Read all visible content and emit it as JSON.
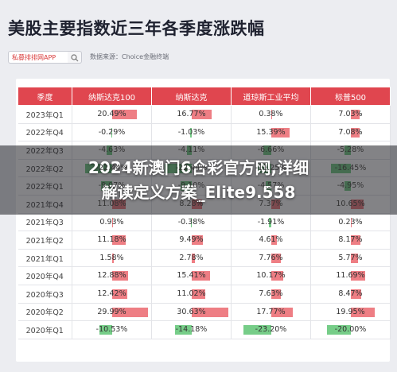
{
  "header": {
    "title": "美股主要指数近三年各季度涨跌幅",
    "app_tag": "私募排排网APP",
    "source": "数据来源：Choice金融终端"
  },
  "overlay": {
    "line1": "2024新澳门6合彩官方网,详细",
    "line2": "解读定义方案_Elite9.558"
  },
  "colors": {
    "header": "#e0464f",
    "positive": "#e95a62",
    "negative": "#4fbf66"
  },
  "table": {
    "columns": [
      "季度",
      "纳斯达克100",
      "纳斯达克",
      "道琼斯工业平均",
      "标普500"
    ],
    "rows": [
      {
        "q": "2023年Q1",
        "v": [
          "20.49%",
          "16.77%",
          "0.38%",
          "7.03%"
        ],
        "n": [
          20.49,
          16.77,
          0.38,
          7.03
        ]
      },
      {
        "q": "2022年Q4",
        "v": [
          "-0.29%",
          "-1.03%",
          "15.39%",
          "7.08%"
        ],
        "n": [
          -0.29,
          -1.03,
          15.39,
          7.08
        ]
      },
      {
        "q": "2022年Q3",
        "v": [
          "-4.63%",
          "-4.11%",
          "-6.66%",
          "-5.28%"
        ],
        "n": [
          -4.63,
          -4.11,
          -6.66,
          -5.28
        ]
      },
      {
        "q": "2022年Q2",
        "v": [
          "-22.44%",
          "-22.44%",
          "-11.25%",
          "-16.45%"
        ],
        "n": [
          -22.44,
          -22.44,
          -11.25,
          -16.45
        ]
      },
      {
        "q": "2022年Q1",
        "v": [
          "-9.07%",
          "-9.10%",
          "-4.57%",
          "-4.95%"
        ],
        "n": [
          -9.07,
          -9.1,
          -4.57,
          -4.95
        ]
      },
      {
        "q": "2021年Q4",
        "v": [
          "11.08%",
          "8.28%",
          "7.37%",
          "10.65%"
        ],
        "n": [
          11.08,
          8.28,
          7.37,
          10.65
        ]
      },
      {
        "q": "2021年Q3",
        "v": [
          "0.93%",
          "-0.38%",
          "-1.91%",
          "0.23%"
        ],
        "n": [
          0.93,
          -0.38,
          -1.91,
          0.23
        ]
      },
      {
        "q": "2021年Q2",
        "v": [
          "11.18%",
          "9.49%",
          "4.61%",
          "8.17%"
        ],
        "n": [
          11.18,
          9.49,
          4.61,
          8.17
        ]
      },
      {
        "q": "2021年Q1",
        "v": [
          "1.58%",
          "2.78%",
          "7.76%",
          "5.77%"
        ],
        "n": [
          1.58,
          2.78,
          7.76,
          5.77
        ]
      },
      {
        "q": "2020年Q4",
        "v": [
          "12.88%",
          "15.41%",
          "10.17%",
          "11.69%"
        ],
        "n": [
          12.88,
          15.41,
          10.17,
          11.69
        ]
      },
      {
        "q": "2020年Q3",
        "v": [
          "12.42%",
          "11.02%",
          "7.63%",
          "8.47%"
        ],
        "n": [
          12.42,
          11.02,
          7.63,
          8.47
        ]
      },
      {
        "q": "2020年Q2",
        "v": [
          "29.99%",
          "30.63%",
          "17.77%",
          "19.95%"
        ],
        "n": [
          29.99,
          30.63,
          17.77,
          19.95
        ]
      },
      {
        "q": "2020年Q1",
        "v": [
          "-10.53%",
          "-14.18%",
          "-23.20%",
          "-20.00%"
        ],
        "n": [
          -10.53,
          -14.18,
          -23.2,
          -20.0
        ]
      }
    ]
  }
}
